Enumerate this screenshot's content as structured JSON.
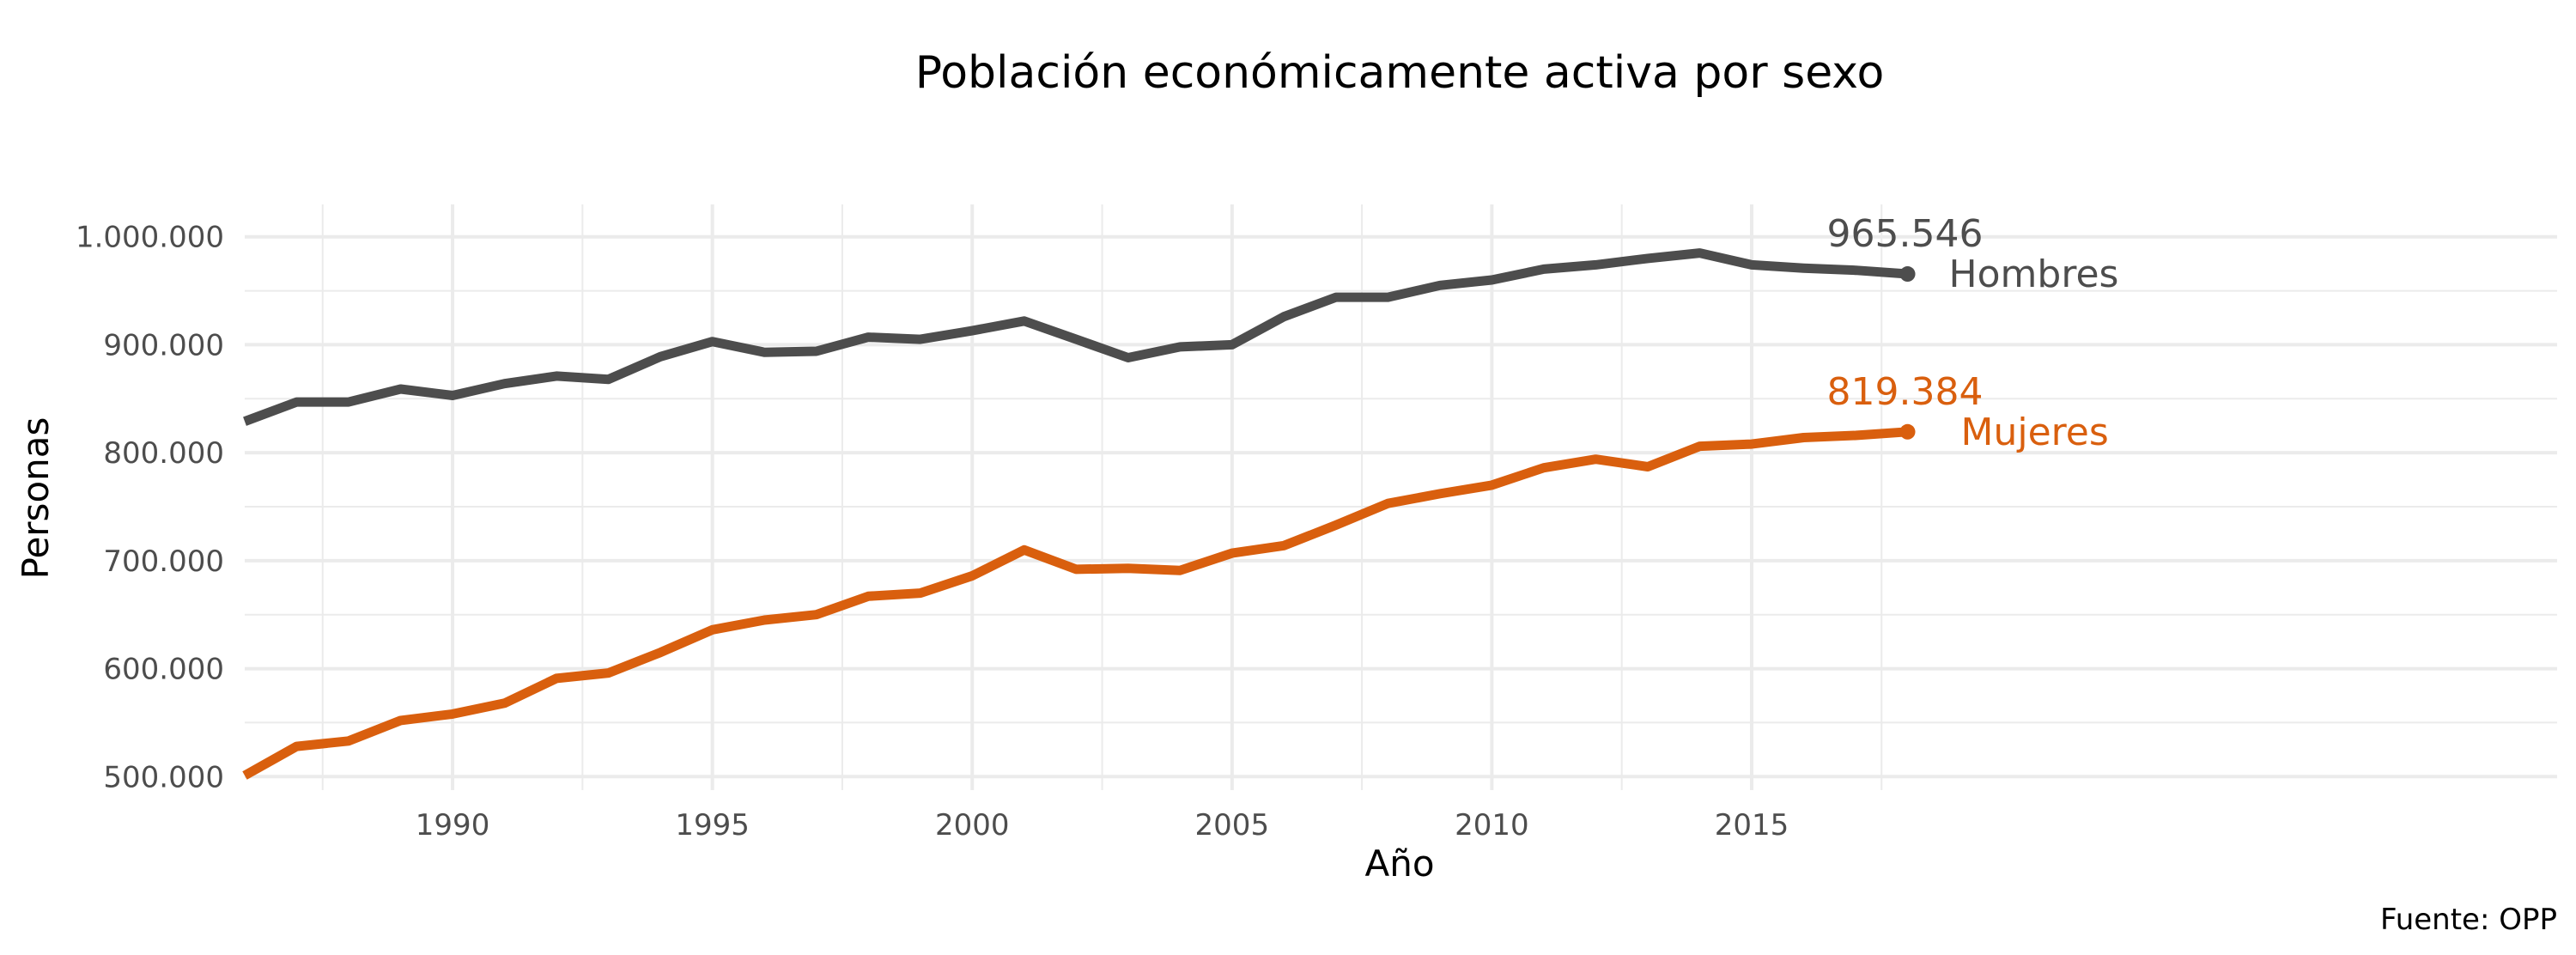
{
  "chart_data": {
    "type": "line",
    "title": "Población económicamente activa por sexo",
    "xlabel": "Año",
    "ylabel": "Personas",
    "caption": "Fuente: OPP",
    "xlim": [
      1986,
      2030.5
    ],
    "ylim": [
      487500,
      1030000
    ],
    "x_ticks": [
      1990,
      1995,
      2000,
      2005,
      2010,
      2015
    ],
    "x_tick_labels": [
      "1990",
      "1995",
      "2000",
      "2005",
      "2010",
      "2015"
    ],
    "y_ticks": [
      500000,
      600000,
      700000,
      800000,
      900000,
      1000000
    ],
    "y_tick_labels": [
      "500.000",
      "600.000",
      "700.000",
      "800.000",
      "900.000",
      "1.000.000"
    ],
    "grid": true,
    "legend": "none",
    "x": [
      1986,
      1987,
      1988,
      1989,
      1990,
      1991,
      1992,
      1993,
      1994,
      1995,
      1996,
      1997,
      1998,
      1999,
      2000,
      2001,
      2002,
      2003,
      2004,
      2005,
      2006,
      2007,
      2008,
      2009,
      2010,
      2011,
      2012,
      2013,
      2014,
      2015,
      2016,
      2017,
      2018
    ],
    "series": [
      {
        "name": "Hombres",
        "color": "#4d4d4d",
        "end_value_label": "965.546",
        "values": [
          829000,
          847000,
          847000,
          859000,
          853000,
          864000,
          871000,
          868000,
          889000,
          903000,
          893000,
          894000,
          907000,
          905000,
          913000,
          922000,
          905000,
          888000,
          898000,
          900000,
          926000,
          944000,
          944000,
          955000,
          960000,
          970000,
          974000,
          980000,
          985000,
          974000,
          971000,
          969000,
          965546
        ]
      },
      {
        "name": "Mujeres",
        "color": "#d95f0e",
        "end_value_label": "819.384",
        "values": [
          501000,
          528000,
          533000,
          552000,
          558000,
          568000,
          591000,
          596000,
          615000,
          636000,
          645000,
          650000,
          667000,
          670000,
          686000,
          710000,
          692000,
          693000,
          691000,
          707000,
          714000,
          733000,
          753000,
          762000,
          770000,
          786000,
          794000,
          787000,
          806000,
          808000,
          814000,
          816000,
          819384
        ]
      }
    ]
  }
}
